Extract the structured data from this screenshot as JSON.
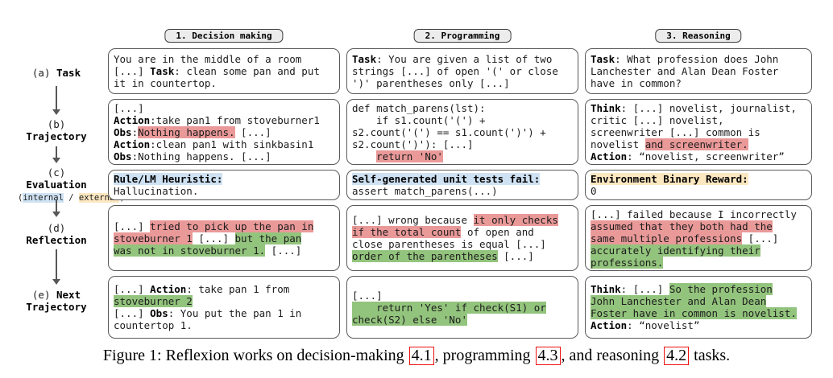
{
  "colors": {
    "highlight_red": "#ea9999",
    "highlight_green": "#93c47d",
    "highlight_blue": "#cfe2f3",
    "highlight_yellow": "#fbe7c0",
    "link_red": "#ee1111"
  },
  "side_labels": {
    "a": [
      [
        {
          "t": "(a) "
        },
        {
          "t": "Task",
          "b": true
        }
      ]
    ],
    "b": [
      [
        {
          "t": "(b)"
        }
      ],
      [
        {
          "t": "Trajectory",
          "b": true
        }
      ]
    ],
    "c": [
      [
        {
          "t": "(c)"
        }
      ],
      [
        {
          "t": "Evaluation",
          "b": true
        }
      ],
      [
        {
          "t": "(",
          "s": true
        },
        {
          "t": "internal",
          "s": true,
          "h": "blue"
        },
        {
          "t": " / ",
          "s": true
        },
        {
          "t": "external",
          "s": true,
          "h": "yellow"
        },
        {
          "t": ")",
          "s": true
        }
      ]
    ],
    "d": [
      [
        {
          "t": "(d)"
        }
      ],
      [
        {
          "t": "Reflection",
          "b": true
        }
      ]
    ],
    "e": [
      [
        {
          "t": "(e) "
        },
        {
          "t": "Next",
          "b": true
        }
      ],
      [
        {
          "t": "Trajectory",
          "b": true
        }
      ]
    ]
  },
  "columns": [
    {
      "tab": "1. Decision making",
      "task": [
        [
          {
            "t": "You are in the middle of a room"
          }
        ],
        [
          {
            "t": "[...] "
          },
          {
            "t": "Task",
            "b": true
          },
          {
            "t": ": clean some pan and put"
          }
        ],
        [
          {
            "t": "it in countertop."
          }
        ]
      ],
      "trajectory": [
        [
          {
            "t": "[...]"
          }
        ],
        [
          {
            "t": "Action",
            "b": true
          },
          {
            "t": ":take pan1 from stoveburner1"
          }
        ],
        [
          {
            "t": "Obs",
            "b": true
          },
          {
            "t": ":"
          },
          {
            "t": "Nothing happens.",
            "h": "red"
          },
          {
            "t": " [...]"
          }
        ],
        [
          {
            "t": "Action",
            "b": true
          },
          {
            "t": ":clean pan1 with sinkbasin1"
          }
        ],
        [
          {
            "t": "Obs",
            "b": true
          },
          {
            "t": ":Nothing happens. [...]"
          }
        ]
      ],
      "evaluation": [
        [
          {
            "t": "Rule/LM Heuristic:",
            "b": true,
            "h": "blue"
          }
        ],
        [
          {
            "t": "Hallucination."
          }
        ]
      ],
      "reflection": [
        [
          {
            "t": "[...] "
          },
          {
            "t": "tried to pick up the pan in",
            "h": "red"
          }
        ],
        [
          {
            "t": "stoveburner 1",
            "h": "red"
          },
          {
            "t": " [...] "
          },
          {
            "t": "but the pan",
            "h": "green"
          }
        ],
        [
          {
            "t": "was not in stoveburner 1.",
            "h": "green"
          },
          {
            "t": " [...]"
          }
        ]
      ],
      "next": [
        [
          {
            "t": "[...] "
          },
          {
            "t": "Action",
            "b": true
          },
          {
            "t": ": take pan 1 from"
          }
        ],
        [
          {
            "t": "stoveburner 2",
            "h": "green"
          }
        ],
        [
          {
            "t": "[...] "
          },
          {
            "t": "Obs",
            "b": true
          },
          {
            "t": ": You put the pan 1 in"
          }
        ],
        [
          {
            "t": "countertop 1."
          }
        ]
      ]
    },
    {
      "tab": "2. Programming",
      "task": [
        [
          {
            "t": "Task",
            "b": true
          },
          {
            "t": ": You are given a list of two"
          }
        ],
        [
          {
            "t": "strings [...] of open '(' or close"
          }
        ],
        [
          {
            "t": "')' parentheses only [...]"
          }
        ]
      ],
      "trajectory": [
        [
          {
            "t": "def match_parens(lst):"
          }
        ],
        [
          {
            "t": "    if s1.count('(') +"
          }
        ],
        [
          {
            "t": "s2.count('(') == s1.count(')') +"
          }
        ],
        [
          {
            "t": "s2.count(')'): [...]"
          }
        ],
        [
          {
            "t": "    "
          },
          {
            "t": "return 'No'",
            "h": "red"
          }
        ]
      ],
      "evaluation": [
        [
          {
            "t": "Self-generated unit tests fail:",
            "b": true,
            "h": "blue"
          }
        ],
        [
          {
            "t": "assert match_parens(...)"
          }
        ]
      ],
      "reflection": [
        [
          {
            "t": "[...] wrong because "
          },
          {
            "t": "it only checks",
            "h": "red"
          }
        ],
        [
          {
            "t": "if the total count",
            "h": "red"
          },
          {
            "t": " of open and"
          }
        ],
        [
          {
            "t": "close parentheses is equal [...]"
          }
        ],
        [
          {
            "t": "order of the parentheses",
            "h": "green"
          },
          {
            "t": " [...]"
          }
        ]
      ],
      "next": [
        [
          {
            "t": "[...]"
          }
        ],
        [
          {
            "t": "    return 'Yes' if check(S1) or",
            "h": "green"
          }
        ],
        [
          {
            "t": "check(S2) else 'No'",
            "h": "green"
          }
        ]
      ]
    },
    {
      "tab": "3. Reasoning",
      "task": [
        [
          {
            "t": "Task",
            "b": true
          },
          {
            "t": ": What profession does John"
          }
        ],
        [
          {
            "t": "Lanchester and Alan Dean Foster"
          }
        ],
        [
          {
            "t": "have in common?"
          }
        ]
      ],
      "trajectory": [
        [
          {
            "t": "Think",
            "b": true
          },
          {
            "t": ": [...] novelist, journalist,"
          }
        ],
        [
          {
            "t": "critic [...] novelist,"
          }
        ],
        [
          {
            "t": "screenwriter [...] common is"
          }
        ],
        [
          {
            "t": "novelist "
          },
          {
            "t": "and screenwriter.",
            "h": "red"
          }
        ],
        [
          {
            "t": "Action",
            "b": true
          },
          {
            "t": ": “novelist, screenwriter”"
          }
        ]
      ],
      "evaluation": [
        [
          {
            "t": "Environment Binary Reward:",
            "b": true,
            "h": "yellow"
          }
        ],
        [
          {
            "t": "0"
          }
        ]
      ],
      "reflection": [
        [
          {
            "t": "[...] failed because I incorrectly"
          }
        ],
        [
          {
            "t": "assumed that they both had the",
            "h": "red"
          }
        ],
        [
          {
            "t": "same multiple professions",
            "h": "red"
          },
          {
            "t": " [...]"
          }
        ],
        [
          {
            "t": "accurately identifying their",
            "h": "green"
          }
        ],
        [
          {
            "t": "professions.",
            "h": "green"
          }
        ]
      ],
      "next": [
        [
          {
            "t": "Think",
            "b": true
          },
          {
            "t": ": [...] "
          },
          {
            "t": "So the profession",
            "h": "green"
          }
        ],
        [
          {
            "t": "John Lanchester and Alan Dean",
            "h": "green"
          }
        ],
        [
          {
            "t": "Foster have in common is novelist.",
            "h": "green"
          }
        ],
        [
          {
            "t": "Action",
            "b": true
          },
          {
            "t": ": “novelist”"
          }
        ]
      ]
    }
  ],
  "caption": {
    "segments": [
      {
        "t": "Figure 1: Reflexion works on decision-making "
      },
      {
        "t": "4.1",
        "link": true
      },
      {
        "t": ", programming "
      },
      {
        "t": "4.3",
        "link": true
      },
      {
        "t": ", and reasoning "
      },
      {
        "t": "4.2",
        "link": true
      },
      {
        "t": " tasks."
      }
    ]
  }
}
